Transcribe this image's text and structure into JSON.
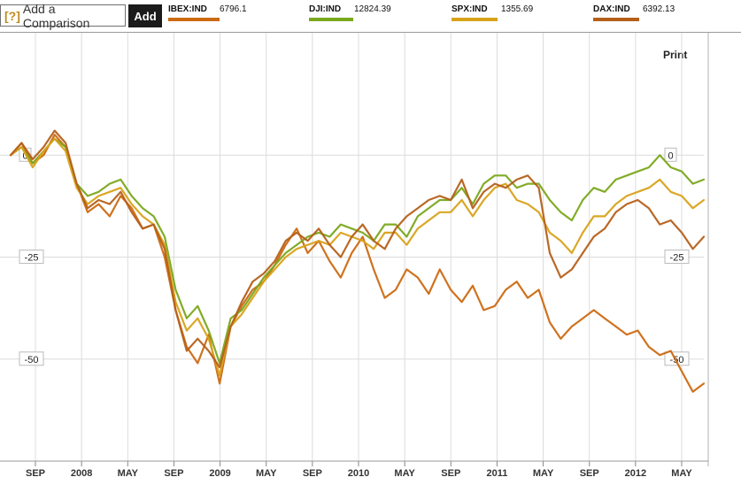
{
  "comparison": {
    "prefix": "[?]",
    "placeholder": "Add a Comparison",
    "add_label": "Add"
  },
  "tickers": [
    {
      "symbol": "IBEX:IND",
      "value": "6796.1",
      "color": "#cc6a12"
    },
    {
      "symbol": "DJI:IND",
      "value": "12824.39",
      "color": "#7aa81c"
    },
    {
      "symbol": "SPX:IND",
      "value": "1355.69",
      "color": "#d8a21a"
    },
    {
      "symbol": "DAX:IND",
      "value": "6392.13",
      "color": "#b5601a"
    }
  ],
  "print_label": "Print",
  "chart_data": {
    "type": "line",
    "x_ticks": [
      "SEP",
      "2008",
      "MAY",
      "SEP",
      "2009",
      "MAY",
      "SEP",
      "2010",
      "MAY",
      "SEP",
      "2011",
      "MAY",
      "SEP",
      "2012",
      "MAY"
    ],
    "y_ticks": [
      0,
      -25,
      -50
    ],
    "ylim": [
      -75,
      30
    ],
    "grid": true,
    "series": [
      {
        "name": "IBEX:IND",
        "color": "#cc6a12",
        "values": [
          0,
          3,
          -2,
          0,
          5,
          2,
          -7,
          -14,
          -12,
          -15,
          -10,
          -13,
          -18,
          -17,
          -25,
          -38,
          -47,
          -51,
          -44,
          -56,
          -42,
          -37,
          -33,
          -31,
          -27,
          -22,
          -18,
          -24,
          -21,
          -26,
          -30,
          -24,
          -20,
          -28,
          -35,
          -33,
          -28,
          -30,
          -34,
          -28,
          -33,
          -36,
          -32,
          -38,
          -37,
          -33,
          -31,
          -35,
          -33,
          -41,
          -45,
          -42,
          -40,
          -38,
          -40,
          -42,
          -44,
          -43,
          -47,
          -49,
          -48,
          -53,
          -58,
          -56
        ]
      },
      {
        "name": "DJI:IND",
        "color": "#7aa81c",
        "values": [
          0,
          2,
          -2,
          1,
          4,
          2,
          -7,
          -10,
          -9,
          -7,
          -6,
          -10,
          -13,
          -15,
          -20,
          -33,
          -40,
          -37,
          -43,
          -51,
          -40,
          -38,
          -34,
          -30,
          -27,
          -24,
          -22,
          -20,
          -19,
          -20,
          -17,
          -18,
          -19,
          -21,
          -17,
          -17,
          -20,
          -15,
          -13,
          -11,
          -11,
          -8,
          -12,
          -7,
          -5,
          -5,
          -8,
          -7,
          -7,
          -11,
          -14,
          -16,
          -11,
          -8,
          -9,
          -6,
          -5,
          -4,
          -3,
          0,
          -3,
          -4,
          -7,
          -6
        ]
      },
      {
        "name": "SPX:IND",
        "color": "#d8a21a",
        "values": [
          0,
          2,
          -3,
          1,
          4,
          1,
          -8,
          -12,
          -10,
          -9,
          -8,
          -12,
          -15,
          -17,
          -22,
          -36,
          -43,
          -40,
          -45,
          -54,
          -42,
          -39,
          -35,
          -31,
          -28,
          -25,
          -23,
          -22,
          -21,
          -22,
          -19,
          -20,
          -21,
          -23,
          -19,
          -19,
          -22,
          -18,
          -16,
          -14,
          -14,
          -11,
          -15,
          -11,
          -8,
          -7,
          -11,
          -12,
          -14,
          -19,
          -21,
          -24,
          -19,
          -15,
          -15,
          -12,
          -10,
          -9,
          -8,
          -6,
          -9,
          -10,
          -13,
          -11
        ]
      },
      {
        "name": "DAX:IND",
        "color": "#b5601a",
        "values": [
          0,
          3,
          -1,
          2,
          6,
          3,
          -7,
          -13,
          -11,
          -12,
          -9,
          -14,
          -18,
          -17,
          -23,
          -38,
          -48,
          -45,
          -48,
          -52,
          -42,
          -36,
          -31,
          -29,
          -26,
          -21,
          -19,
          -21,
          -18,
          -22,
          -25,
          -20,
          -17,
          -21,
          -23,
          -18,
          -15,
          -13,
          -11,
          -10,
          -11,
          -6,
          -13,
          -9,
          -7,
          -8,
          -6,
          -5,
          -8,
          -24,
          -30,
          -28,
          -24,
          -20,
          -18,
          -14,
          -12,
          -11,
          -13,
          -17,
          -16,
          -19,
          -23,
          -20
        ]
      }
    ]
  }
}
